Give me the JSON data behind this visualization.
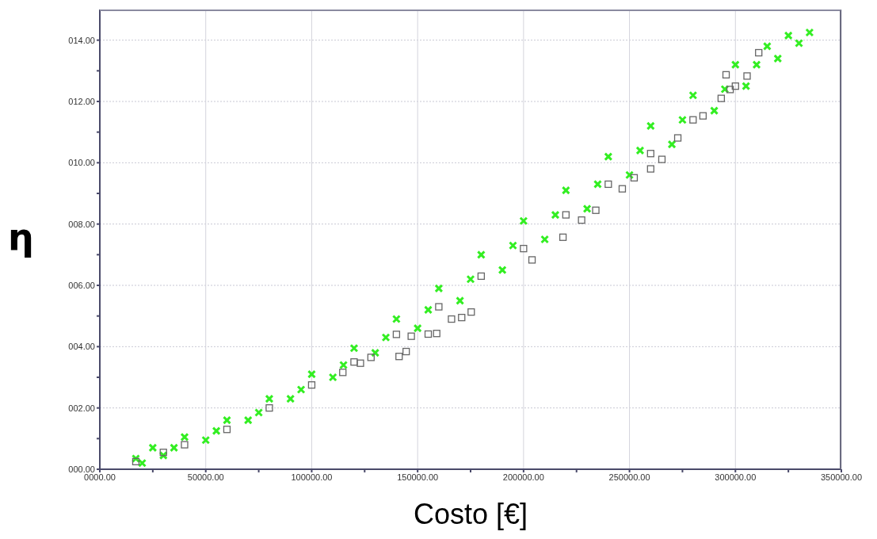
{
  "chart_data": {
    "type": "scatter",
    "xlabel": "Costo [€]",
    "ylabel": "η",
    "xlim": [
      0,
      350000
    ],
    "ylim": [
      0,
      15
    ],
    "xticks": [
      {
        "value": 0,
        "label": "0000.00"
      },
      {
        "value": 25000,
        "label": null
      },
      {
        "value": 50000,
        "label": "50000.00"
      },
      {
        "value": 75000,
        "label": null
      },
      {
        "value": 100000,
        "label": "100000.00"
      },
      {
        "value": 125000,
        "label": null
      },
      {
        "value": 150000,
        "label": "150000.00"
      },
      {
        "value": 175000,
        "label": null
      },
      {
        "value": 200000,
        "label": "200000.00"
      },
      {
        "value": 225000,
        "label": null
      },
      {
        "value": 250000,
        "label": "250000.00"
      },
      {
        "value": 275000,
        "label": null
      },
      {
        "value": 300000,
        "label": "300000.00"
      },
      {
        "value": 325000,
        "label": null
      },
      {
        "value": 350000,
        "label": "350000.00"
      }
    ],
    "yticks": [
      {
        "value": 0,
        "label": "000.00"
      },
      {
        "value": 1,
        "label": null
      },
      {
        "value": 2,
        "label": "002.00"
      },
      {
        "value": 3,
        "label": null
      },
      {
        "value": 4,
        "label": "004.00"
      },
      {
        "value": 5,
        "label": null
      },
      {
        "value": 6,
        "label": "006.00"
      },
      {
        "value": 7,
        "label": null
      },
      {
        "value": 8,
        "label": "008.00"
      },
      {
        "value": 9,
        "label": null
      },
      {
        "value": 10,
        "label": "010.00"
      },
      {
        "value": 11,
        "label": null
      },
      {
        "value": 12,
        "label": "012.00"
      },
      {
        "value": 13,
        "label": null
      },
      {
        "value": 14,
        "label": "014.00"
      }
    ],
    "grid": true,
    "series": [
      {
        "color": "#33ee22",
        "marker": "cross",
        "x": [
          17000,
          25000,
          40000,
          60000,
          80000,
          100000,
          120000,
          140000,
          160000,
          180000,
          200000,
          220000,
          240000,
          260000,
          280000,
          300000,
          315000,
          325000,
          335000,
          20000,
          30000,
          50000,
          70000,
          90000,
          110000,
          130000,
          150000,
          170000,
          190000,
          210000,
          230000,
          250000,
          270000,
          290000,
          305000,
          320000,
          330000,
          35000,
          55000,
          75000,
          95000,
          115000,
          135000,
          155000,
          175000,
          195000,
          215000,
          235000,
          255000,
          275000,
          295000,
          310000
        ],
        "values": [
          0.35,
          0.7,
          1.05,
          1.6,
          2.3,
          3.1,
          3.95,
          4.9,
          5.9,
          7.0,
          8.1,
          9.1,
          10.2,
          11.2,
          12.2,
          13.2,
          13.8,
          14.15,
          14.25,
          0.2,
          0.45,
          0.95,
          1.6,
          2.3,
          3.0,
          3.8,
          4.6,
          5.5,
          6.5,
          7.5,
          8.5,
          9.6,
          10.6,
          11.7,
          12.5,
          13.4,
          13.9,
          0.7,
          1.25,
          1.85,
          2.6,
          3.4,
          4.3,
          5.2,
          6.2,
          7.3,
          8.3,
          9.3,
          10.4,
          11.4,
          12.4,
          13.2
        ]
      },
      {
        "color": "#666666",
        "marker": "square",
        "x": [
          17000,
          30000,
          40000,
          60000,
          80000,
          100000,
          120000,
          140000,
          160000,
          180000,
          200000,
          220000,
          240000,
          260000,
          280000,
          300000,
          114700,
          123000,
          128000,
          141250,
          144600,
          147000,
          155000,
          159000,
          166000,
          170800,
          175300,
          204000,
          218600,
          227400,
          234100,
          246600,
          252200,
          260000,
          265300,
          272800,
          284700,
          293300,
          297500,
          295600,
          305500,
          311000
        ],
        "values": [
          0.25,
          0.55,
          0.8,
          1.3,
          2.0,
          2.75,
          3.5,
          4.4,
          5.3,
          6.3,
          7.2,
          8.3,
          9.3,
          10.3,
          11.4,
          12.5,
          3.16,
          3.46,
          3.65,
          3.68,
          3.84,
          4.34,
          4.41,
          4.43,
          4.9,
          4.95,
          5.13,
          6.83,
          7.57,
          8.13,
          8.45,
          9.15,
          9.51,
          9.8,
          10.11,
          10.81,
          11.53,
          12.1,
          12.39,
          12.87,
          12.83,
          13.59
        ]
      }
    ]
  }
}
